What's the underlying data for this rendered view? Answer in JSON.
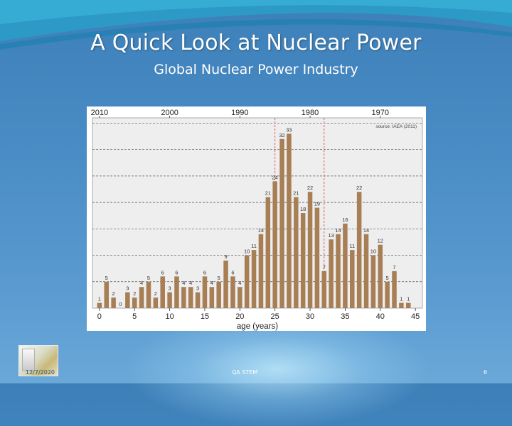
{
  "slide": {
    "title": "A Quick Look at Nuclear Power",
    "subtitle": "Global Nuclear Power Industry",
    "footer_date": "12/7/2020",
    "footer_center": "QA STEM",
    "page_number": "6"
  },
  "colors": {
    "background": "#4a8cc5",
    "bar": "#a87e55",
    "reference_line": "#d9534f"
  },
  "chart_data": {
    "type": "bar",
    "title": "",
    "xlabel": "age (years)",
    "ylabel": "",
    "source_note": "source: IAEA (2011)",
    "x": [
      0,
      1,
      2,
      3,
      4,
      5,
      6,
      7,
      8,
      9,
      10,
      11,
      12,
      13,
      14,
      15,
      16,
      17,
      18,
      19,
      20,
      21,
      22,
      23,
      24,
      25,
      26,
      27,
      28,
      29,
      30,
      31,
      32,
      33,
      34,
      35,
      36,
      37,
      38,
      39,
      40,
      41,
      42,
      43,
      44
    ],
    "values": [
      1,
      5,
      2,
      0,
      3,
      2,
      4,
      5,
      2,
      6,
      3,
      6,
      4,
      4,
      3,
      6,
      4,
      5,
      9,
      6,
      4,
      10,
      11,
      14,
      21,
      24,
      32,
      33,
      21,
      18,
      22,
      19,
      7,
      13,
      14,
      16,
      11,
      22,
      14,
      10,
      12,
      5,
      7,
      1,
      1
    ],
    "x_ticks": [
      0,
      5,
      10,
      15,
      20,
      25,
      30,
      35,
      40,
      45
    ],
    "xlim": [
      -1,
      46
    ],
    "ylim": [
      0,
      36
    ],
    "y_gridlines": [
      5,
      10,
      15,
      20,
      25,
      30,
      35
    ],
    "secondary_axis": {
      "label_values": [
        0,
        10,
        20,
        30,
        40
      ],
      "labels": [
        "2010",
        "2000",
        "1990",
        "1980",
        "1970"
      ]
    },
    "reference_lines_x": [
      25,
      32
    ],
    "grid": true,
    "legend": "none"
  }
}
